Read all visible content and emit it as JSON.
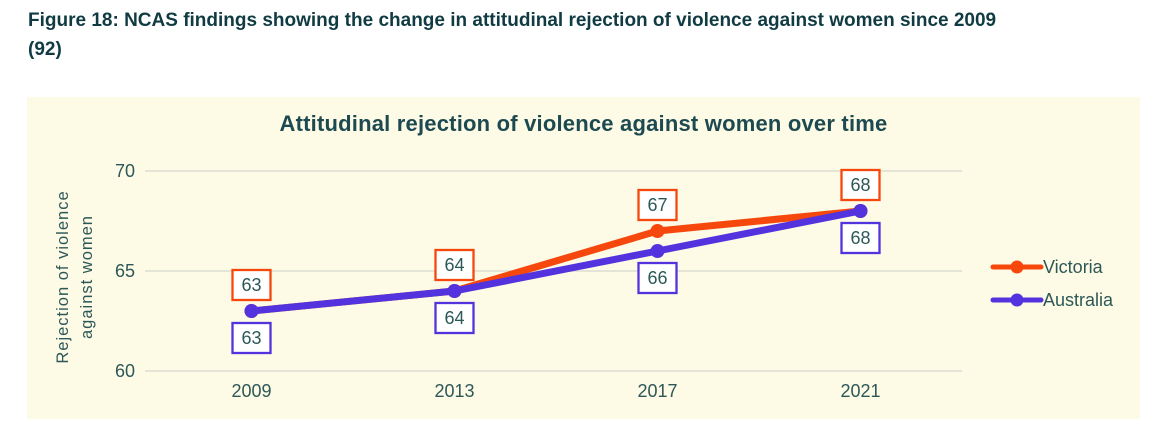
{
  "caption": {
    "line1": "Figure 18: NCAS findings showing the change in attitudinal rejection of violence against women since 2009",
    "line2": "(92)"
  },
  "chart_data": {
    "type": "line",
    "title": "Attitudinal rejection of violence against women over time",
    "categories": [
      "2009",
      "2013",
      "2017",
      "2021"
    ],
    "series": [
      {
        "name": "Victoria",
        "color": "#f6480d",
        "values": [
          63,
          64,
          67,
          68
        ],
        "data_label_position": "above"
      },
      {
        "name": "Australia",
        "color": "#5233dd",
        "values": [
          63,
          64,
          66,
          68
        ],
        "data_label_position": "below"
      }
    ],
    "ylabel": "Rejection of violence against women",
    "ylabel_lines": [
      "Rejection of violence",
      "against women"
    ],
    "yticks": [
      70,
      65,
      60
    ],
    "ylim": [
      60,
      70
    ],
    "xlabel": "",
    "grid": true,
    "data_labels_shown": true,
    "legend_position": "right",
    "colors": {
      "panel_background": "#fdfae6",
      "tick_text": "#2d5858",
      "title_text": "#1d4a50",
      "caption_text": "#113b43",
      "gridline": "#dcded2",
      "label_box_fill": "#ffffff"
    }
  }
}
